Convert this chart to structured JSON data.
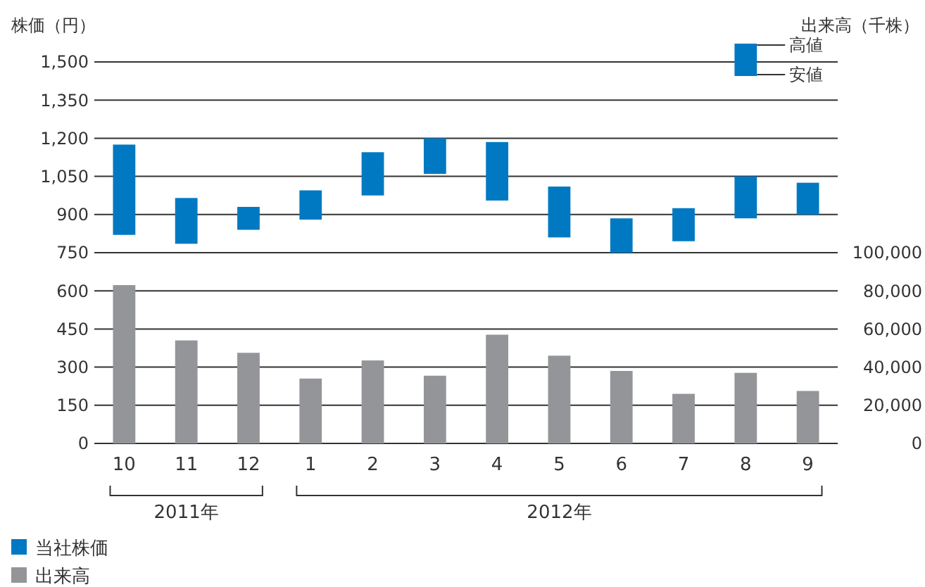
{
  "chart_data": {
    "type": "bar",
    "ylabel": "株価（円）",
    "y2label": "出来高（千株）",
    "categories": [
      "10",
      "11",
      "12",
      "1",
      "2",
      "3",
      "4",
      "5",
      "6",
      "7",
      "8",
      "9"
    ],
    "series": [
      {
        "name": "当社株価",
        "color": "#0079c2",
        "base": [
          820,
          785,
          840,
          880,
          975,
          1060,
          955,
          810,
          750,
          795,
          885,
          900
        ],
        "values": [
          355,
          180,
          90,
          115,
          170,
          140,
          230,
          200,
          135,
          130,
          165,
          125
        ]
      },
      {
        "name": "出来高",
        "axis": "y2",
        "color": "#939598",
        "values": [
          83000,
          54000,
          47500,
          34000,
          43500,
          35500,
          57000,
          46000,
          38000,
          26000,
          37000,
          27500
        ]
      }
    ],
    "ylim": [
      0,
      1500
    ],
    "yticks": [
      0,
      150,
      300,
      450,
      600,
      750,
      900,
      {
        "value": 1050,
        "label": "1,050"
      },
      {
        "value": 1200,
        "label": "1,200"
      },
      {
        "value": 1350,
        "label": "1,350"
      },
      {
        "value": 1500,
        "label": "1,500"
      }
    ],
    "y2lim": [
      0,
      200000
    ],
    "y2ticks": [
      0,
      {
        "value": 20000,
        "label": "20,000"
      },
      {
        "value": 40000,
        "label": "40,000"
      },
      {
        "value": 60000,
        "label": "60,000"
      },
      {
        "value": 80000,
        "label": "80,000"
      },
      {
        "value": 100000,
        "label": "100,000"
      }
    ],
    "annotations": [
      "高値",
      "安値",
      "2011年",
      "2012年"
    ],
    "grid": "y",
    "legend": "bottom left"
  }
}
